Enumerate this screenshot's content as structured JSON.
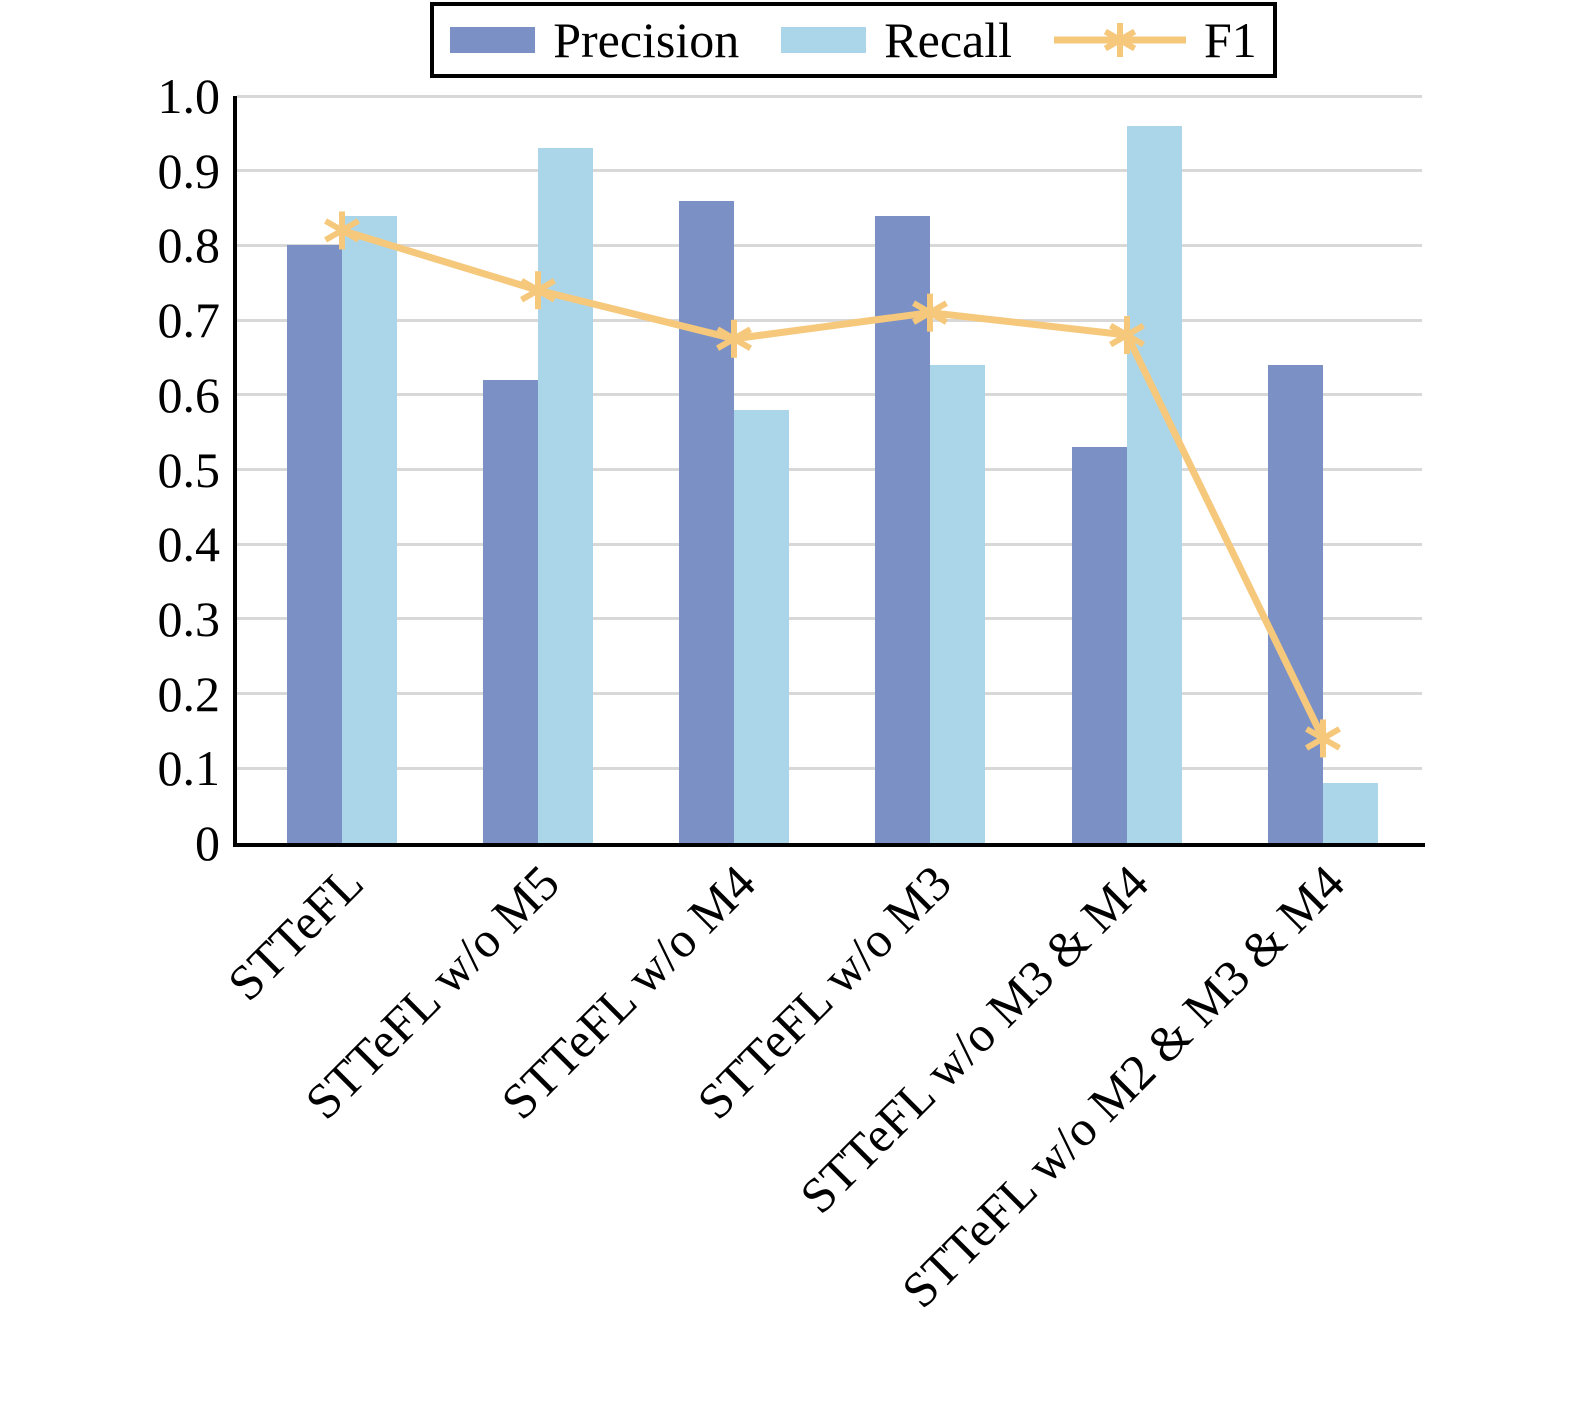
{
  "chart_data": {
    "type": "bar",
    "title": "",
    "xlabel": "",
    "ylabel": "",
    "categories": [
      "STTeFL",
      "STTeFL w/o M5",
      "STTeFL w/o M4",
      "STTeFL w/o M3",
      "STTeFL w/o M3 & M4",
      "STTeFL w/o M2 & M3 & M4"
    ],
    "series": [
      {
        "name": "Precision",
        "type": "bar",
        "color": "#7b90c5",
        "values": [
          0.8,
          0.62,
          0.86,
          0.84,
          0.53,
          0.64
        ]
      },
      {
        "name": "Recall",
        "type": "bar",
        "color": "#abd6ea",
        "values": [
          0.84,
          0.93,
          0.58,
          0.64,
          0.96,
          0.08
        ]
      },
      {
        "name": "F1",
        "type": "line",
        "color": "#f6c87c",
        "marker": "asterisk",
        "values": [
          0.82,
          0.74,
          0.675,
          0.71,
          0.68,
          0.14
        ]
      }
    ],
    "ylim": [
      0,
      1.0
    ],
    "ytick_values": [
      0,
      0.1,
      0.2,
      0.3,
      0.4,
      0.5,
      0.6,
      0.7,
      0.8,
      0.9,
      1.0
    ],
    "ytick_labels": [
      "0",
      "0.1",
      "0.2",
      "0.3",
      "0.4",
      "0.5",
      "0.6",
      "0.7",
      "0.8",
      "0.9",
      "1.0"
    ],
    "grid": "horizontal",
    "grid_color": "#d8d8d8",
    "axis_color": "#000000",
    "legend_position": "top",
    "x_label_rotation_deg": 45
  }
}
